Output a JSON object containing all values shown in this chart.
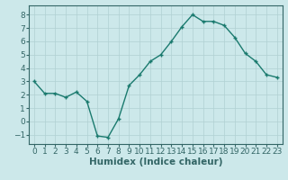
{
  "x": [
    0,
    1,
    2,
    3,
    4,
    5,
    6,
    7,
    8,
    9,
    10,
    11,
    12,
    13,
    14,
    15,
    16,
    17,
    18,
    19,
    20,
    21,
    22,
    23
  ],
  "y": [
    3.0,
    2.1,
    2.1,
    1.8,
    2.2,
    1.5,
    -1.1,
    -1.2,
    0.2,
    2.7,
    3.5,
    4.5,
    5.0,
    6.0,
    7.1,
    8.0,
    7.5,
    7.5,
    7.2,
    6.3,
    5.1,
    4.5,
    3.5,
    3.3
  ],
  "line_color": "#1a7a6e",
  "marker": "+",
  "marker_size": 3,
  "marker_lw": 1.0,
  "bg_color": "#cce8ea",
  "grid_color": "#b0d0d3",
  "xlabel": "Humidex (Indice chaleur)",
  "xlabel_weight": "bold",
  "xlim": [
    -0.5,
    23.5
  ],
  "ylim": [
    -1.7,
    8.7
  ],
  "yticks": [
    -1,
    0,
    1,
    2,
    3,
    4,
    5,
    6,
    7,
    8
  ],
  "xticks": [
    0,
    1,
    2,
    3,
    4,
    5,
    6,
    7,
    8,
    9,
    10,
    11,
    12,
    13,
    14,
    15,
    16,
    17,
    18,
    19,
    20,
    21,
    22,
    23
  ],
  "tick_label_size": 6.5,
  "xlabel_size": 7.5,
  "line_width": 1.0,
  "spine_color": "#336666"
}
